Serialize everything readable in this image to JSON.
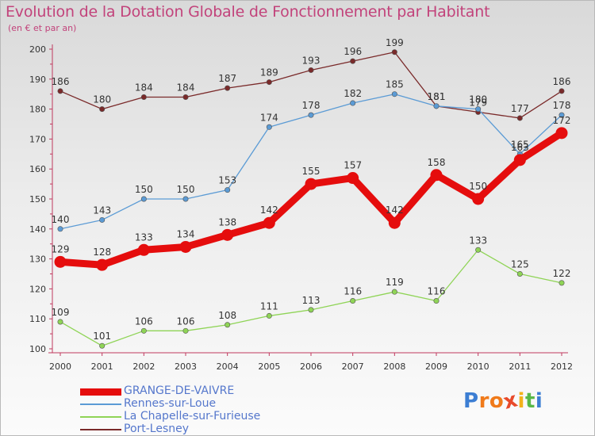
{
  "title": "Evolution de la Dotation Globale de Fonctionnement par Habitant",
  "subtitle": "(en € et par an)",
  "logo": {
    "letters": [
      "P",
      "r",
      "o",
      "x",
      "i",
      "t",
      "i"
    ],
    "colors": [
      "#3c7ed3",
      "#f07a1a",
      "#f07a1a",
      "#e84a2a",
      "#f2b21a",
      "#58b848",
      "#3c7ed3"
    ]
  },
  "chart_data": {
    "type": "line",
    "x": [
      "2000",
      "2001",
      "2002",
      "2003",
      "2004",
      "2005",
      "2006",
      "2007",
      "2008",
      "2009",
      "2010",
      "2011",
      "2012"
    ],
    "ylim": [
      100,
      200
    ],
    "yticks": [
      "100",
      "110",
      "120",
      "130",
      "140",
      "150",
      "160",
      "170",
      "180",
      "190",
      "200"
    ],
    "grid": false,
    "legend_position": "bottom-left",
    "series": [
      {
        "name": "Port-Lesney",
        "color": "#7a2a2a",
        "values": [
          186,
          180,
          184,
          184,
          187,
          189,
          193,
          196,
          199,
          181,
          179,
          177,
          186
        ],
        "labels": [
          "186",
          "180",
          "184",
          "184",
          "187",
          "189",
          "193",
          "196",
          "199",
          "181",
          "179",
          "177",
          "186"
        ]
      },
      {
        "name": "Rennes-sur-Loue",
        "color": "#5b9bd5",
        "values": [
          140,
          143,
          150,
          150,
          153,
          174,
          178,
          182,
          185,
          181,
          180,
          165,
          178
        ],
        "labels": [
          "140",
          "143",
          "150",
          "150",
          "153",
          "174",
          "178",
          "182",
          "185",
          "181",
          "180",
          "165",
          "178"
        ]
      },
      {
        "name": "La Chapelle-sur-Furieuse",
        "color": "#8fd456",
        "values": [
          109,
          101,
          106,
          106,
          108,
          111,
          113,
          116,
          119,
          116,
          133,
          125,
          122
        ],
        "labels": [
          "109",
          "101",
          "106",
          "106",
          "108",
          "111",
          "113",
          "116",
          "119",
          "116",
          "133",
          "125",
          "122"
        ]
      },
      {
        "name": "GRANGE-DE-VAIVRE",
        "color": "#e50d0d",
        "values": [
          129,
          128,
          133,
          134,
          138,
          142,
          155,
          157,
          142,
          158,
          150,
          163,
          172
        ],
        "labels": [
          "129",
          "128",
          "133",
          "134",
          "138",
          "142",
          "155",
          "157",
          "142",
          "158",
          "150",
          "163",
          "172"
        ]
      }
    ],
    "legend": [
      {
        "name": "GRANGE-DE-VAIVRE",
        "color": "#e50d0d",
        "label_color": "#5577cc"
      },
      {
        "name": "Rennes-sur-Loue",
        "color": "#5b9bd5",
        "label_color": "#5577cc"
      },
      {
        "name": "La Chapelle-sur-Furieuse",
        "color": "#8fd456",
        "label_color": "#5577cc"
      },
      {
        "name": "Port-Lesney",
        "color": "#7a2a2a",
        "label_color": "#5577cc"
      }
    ]
  }
}
